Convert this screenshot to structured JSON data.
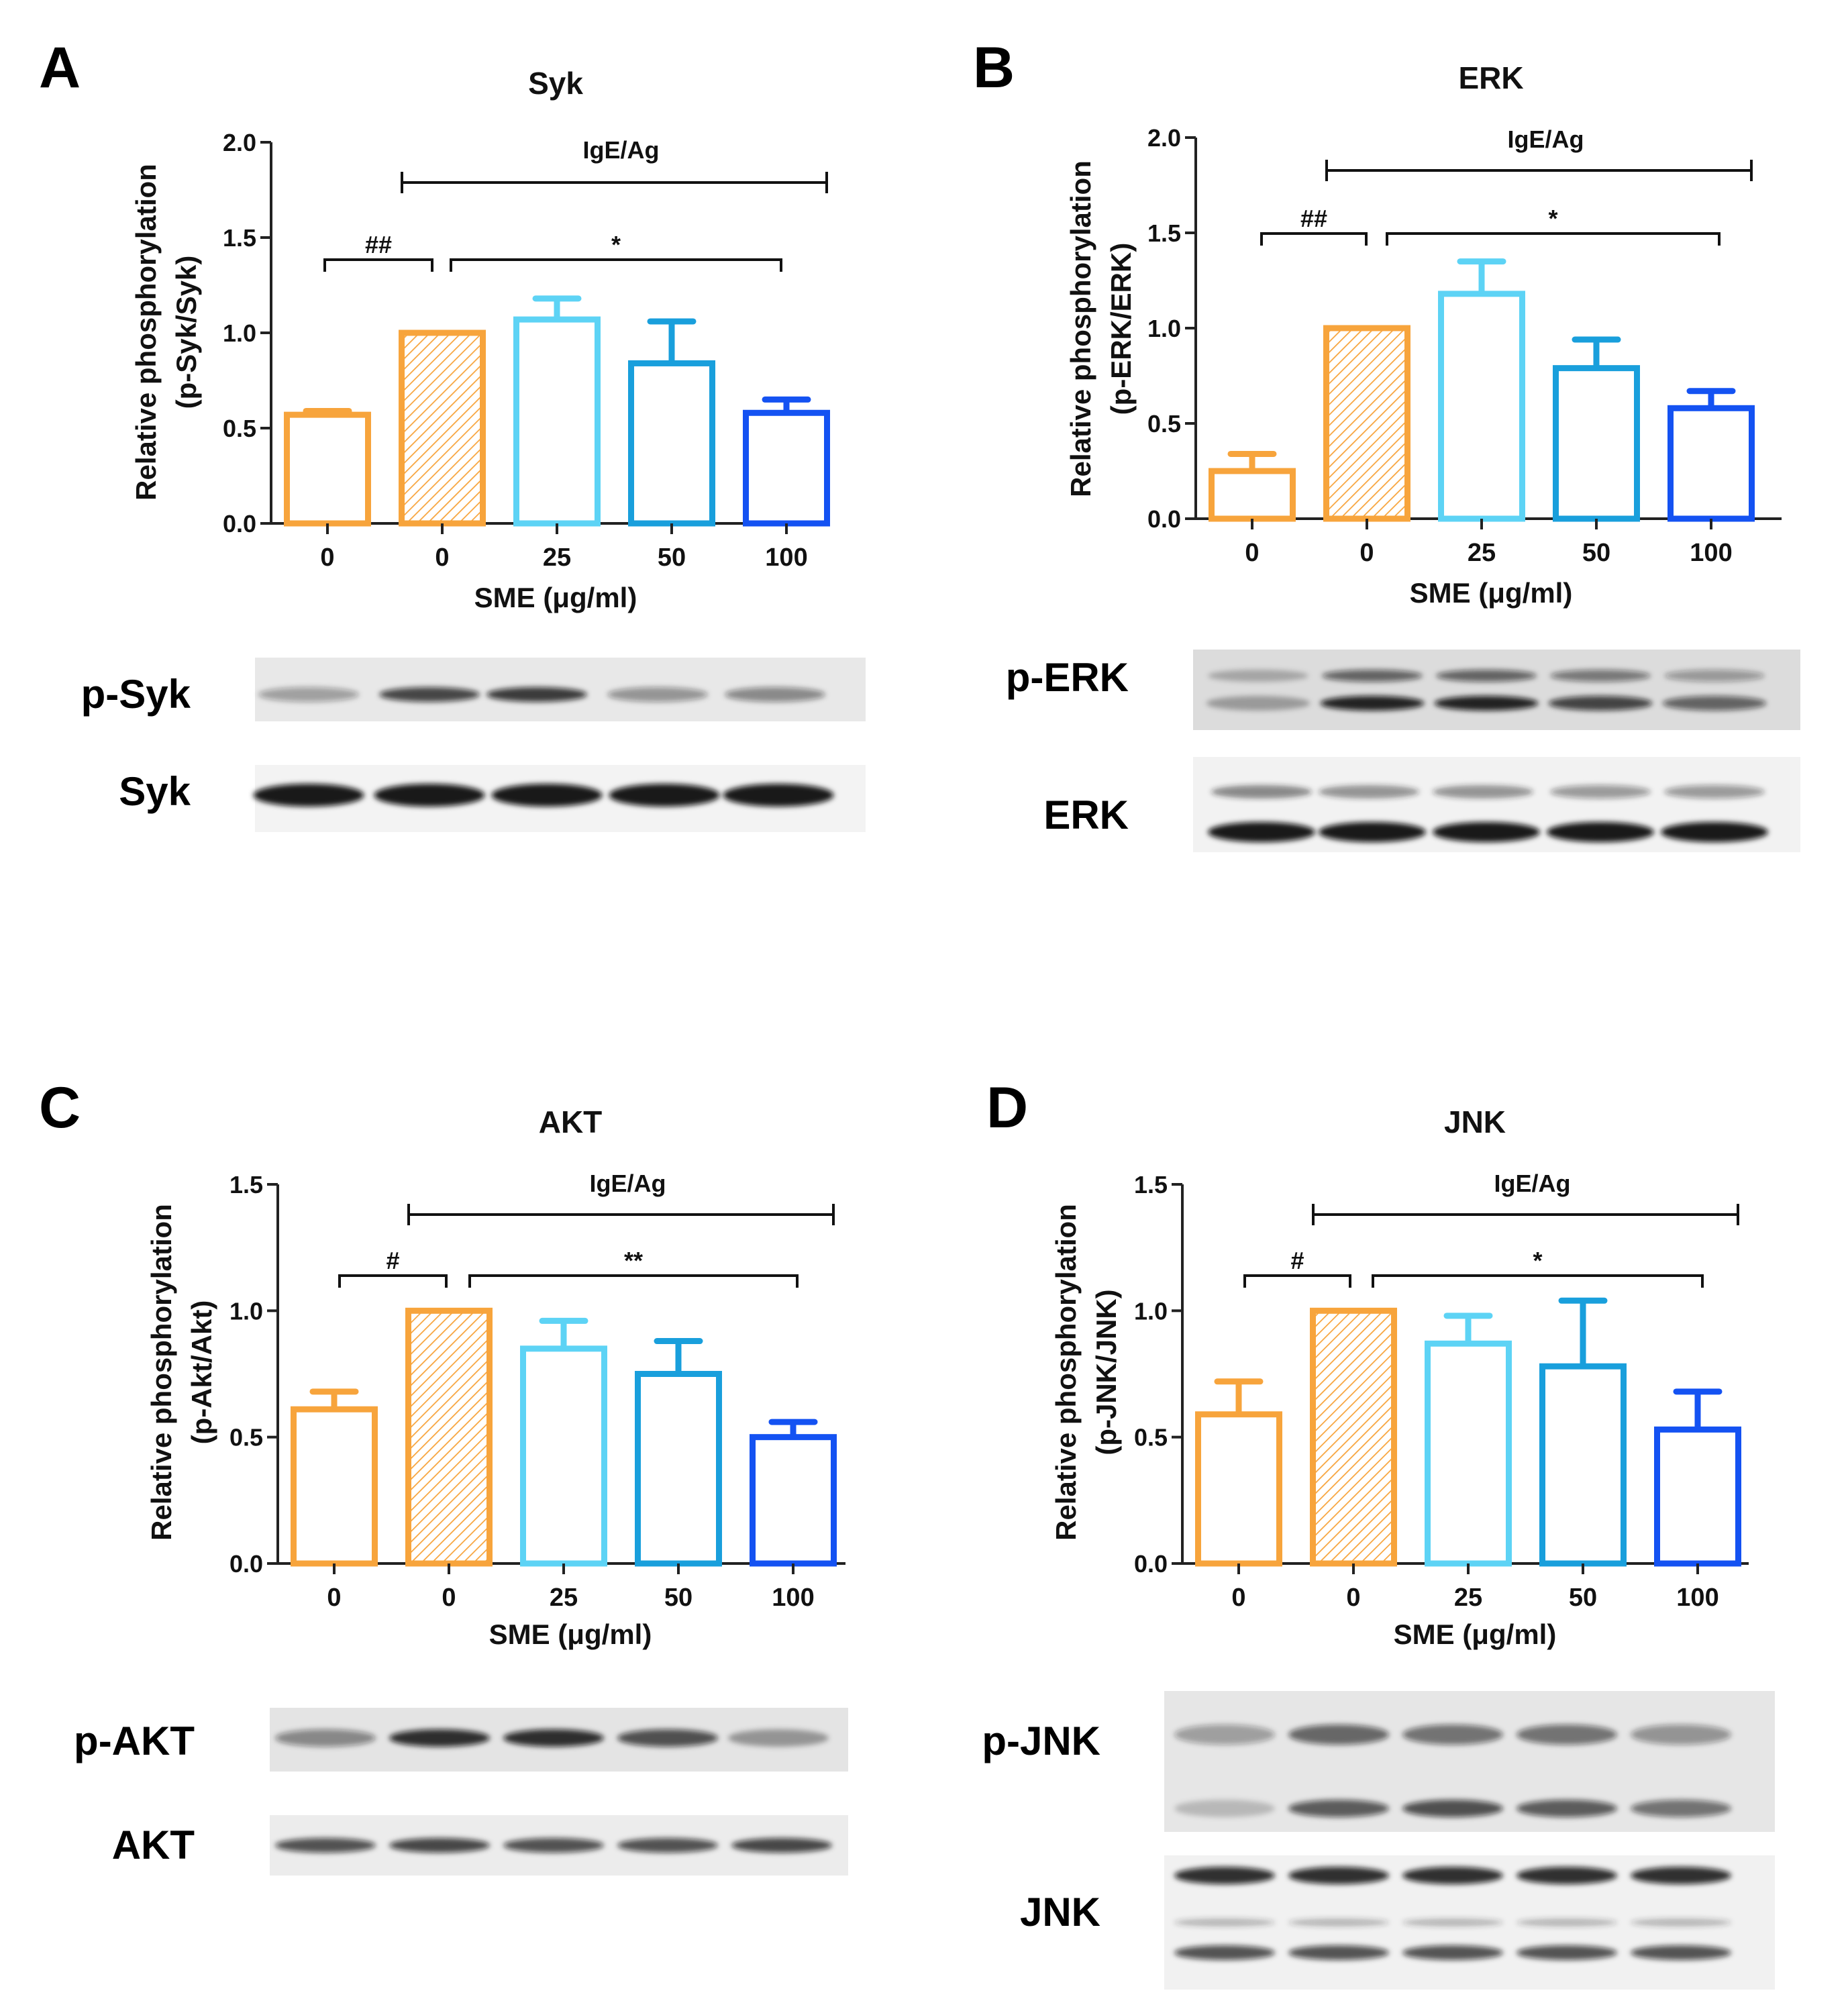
{
  "figure": {
    "panels": [
      {
        "letter": "A",
        "blot_labels": [
          "p-Syk",
          "Syk"
        ]
      },
      {
        "letter": "B",
        "blot_labels": [
          "p-ERK",
          "ERK"
        ]
      },
      {
        "letter": "C",
        "blot_labels": [
          "p-AKT",
          "AKT"
        ]
      },
      {
        "letter": "D",
        "blot_labels": [
          "p-JNK",
          "JNK"
        ]
      }
    ]
  },
  "chart_data": [
    {
      "type": "bar",
      "title": "Syk",
      "ylabel": "Relative phosphorylation",
      "ylabel2": "(p-Syk/Syk)",
      "xlabel": "SME (μg/ml)",
      "categories": [
        "0",
        "0",
        "25",
        "50",
        "100"
      ],
      "values": [
        0.57,
        1.0,
        1.07,
        0.84,
        0.58
      ],
      "errors": [
        0.02,
        0.0,
        0.11,
        0.22,
        0.07
      ],
      "ylim": [
        0,
        2.0
      ],
      "yticks": [
        "0.0",
        "0.5",
        "1.0",
        "1.5",
        "2.0"
      ],
      "bar_colors": [
        "#f7a43c",
        "#f7a43c",
        "#5dd3f5",
        "#199fdc",
        "#1452f2"
      ],
      "hatched": [
        false,
        true,
        false,
        false,
        false
      ],
      "treatment_label": "IgE/Ag",
      "control_sig": "##",
      "treatment_sig": "*"
    },
    {
      "type": "bar",
      "title": "ERK",
      "ylabel": "Relative phosphorylation",
      "ylabel2": "(p-ERK/ERK)",
      "xlabel": "SME (μg/ml)",
      "categories": [
        "0",
        "0",
        "25",
        "50",
        "100"
      ],
      "values": [
        0.25,
        1.0,
        1.18,
        0.79,
        0.58
      ],
      "errors": [
        0.09,
        0.0,
        0.17,
        0.15,
        0.09
      ],
      "ylim": [
        0,
        2.0
      ],
      "yticks": [
        "0.0",
        "0.5",
        "1.0",
        "1.5",
        "2.0"
      ],
      "bar_colors": [
        "#f7a43c",
        "#f7a43c",
        "#5dd3f5",
        "#199fdc",
        "#1452f2"
      ],
      "hatched": [
        false,
        true,
        false,
        false,
        false
      ],
      "treatment_label": "IgE/Ag",
      "control_sig": "##",
      "treatment_sig": "*"
    },
    {
      "type": "bar",
      "title": "AKT",
      "ylabel": "Relative phosphorylation",
      "ylabel2": "(p-Akt/Akt)",
      "xlabel": "SME (μg/ml)",
      "categories": [
        "0",
        "0",
        "25",
        "50",
        "100"
      ],
      "values": [
        0.61,
        1.0,
        0.85,
        0.75,
        0.5
      ],
      "errors": [
        0.07,
        0.0,
        0.11,
        0.13,
        0.06
      ],
      "ylim": [
        0,
        1.5
      ],
      "yticks": [
        "0.0",
        "0.5",
        "1.0",
        "1.5"
      ],
      "bar_colors": [
        "#f7a43c",
        "#f7a43c",
        "#5dd3f5",
        "#199fdc",
        "#1452f2"
      ],
      "hatched": [
        false,
        true,
        false,
        false,
        false
      ],
      "treatment_label": "IgE/Ag",
      "control_sig": "#",
      "treatment_sig": "**"
    },
    {
      "type": "bar",
      "title": "JNK",
      "ylabel": "Relative phosphorylation",
      "ylabel2": "(p-JNK/JNK)",
      "xlabel": "SME (μg/ml)",
      "categories": [
        "0",
        "0",
        "25",
        "50",
        "100"
      ],
      "values": [
        0.59,
        1.0,
        0.87,
        0.78,
        0.53
      ],
      "errors": [
        0.13,
        0.0,
        0.11,
        0.26,
        0.15
      ],
      "ylim": [
        0,
        1.5
      ],
      "yticks": [
        "0.0",
        "0.5",
        "1.0",
        "1.5"
      ],
      "bar_colors": [
        "#f7a43c",
        "#f7a43c",
        "#5dd3f5",
        "#199fdc",
        "#1452f2"
      ],
      "hatched": [
        false,
        true,
        false,
        false,
        false
      ],
      "treatment_label": "IgE/Ag",
      "control_sig": "#",
      "treatment_sig": "*"
    }
  ]
}
